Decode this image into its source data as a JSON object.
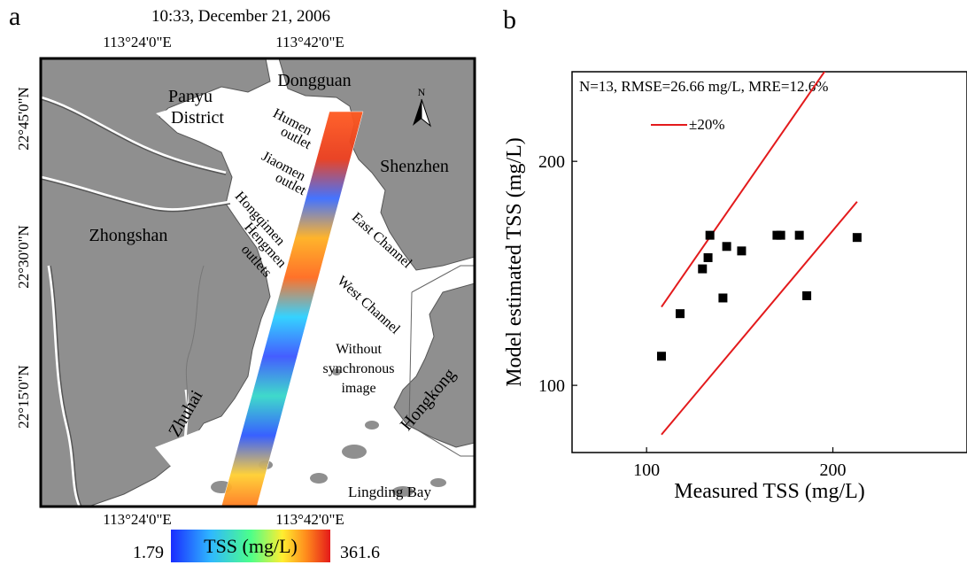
{
  "panel_a": {
    "label": "a",
    "title": "10:33, December 21, 2006",
    "lon_ticks": [
      "113°24'0\"E",
      "113°42'0\"E"
    ],
    "lat_ticks": [
      "22°45'0\"N",
      "22°30'0\"N",
      "22°15'0\"N"
    ],
    "places": {
      "dongguan": "Dongguan",
      "panyu_line1": "Panyu",
      "panyu_line2": "District",
      "shenzhen": "Shenzhen",
      "zhongshan": "Zhongshan",
      "zhuhai": "Zhuhai",
      "hongkong": "Hongkong",
      "lingding": "Lingding Bay"
    },
    "features": {
      "humen_1": "Humen",
      "humen_2": "outlet",
      "jiaomen_1": "Jiaomen",
      "jiaomen_2": "outlet",
      "hongqimen": "Hongqimen",
      "hengmen": "Hengmen",
      "outlets": "outlets",
      "east_channel": "East Channel",
      "west_channel": "West Channel",
      "nosync_1": "Without",
      "nosync_2": "synchronous",
      "nosync_3": "image"
    },
    "north_arrow": "N",
    "colorbar": {
      "min": "1.79",
      "max": "361.6",
      "label": "TSS (mg/L)"
    },
    "colors": {
      "land": "#8f8f8f",
      "water": "#ffffff",
      "border": "#000000"
    }
  },
  "chart_data": {
    "type": "scatter",
    "panel_label": "b",
    "annotation": "N=13, RMSE=26.66 mg/L, MRE=12.6%",
    "legend": [
      {
        "label": "±20%",
        "color": "#e31a1c"
      }
    ],
    "xlabel": "Measured TSS (mg/L)",
    "ylabel": "Model estimated TSS (mg/L)",
    "xlim": [
      60,
      272
    ],
    "ylim": [
      70,
      240
    ],
    "xticks": [
      100,
      200
    ],
    "yticks": [
      100,
      200
    ],
    "points": [
      {
        "x": 108,
        "y": 113
      },
      {
        "x": 118,
        "y": 132
      },
      {
        "x": 130,
        "y": 152
      },
      {
        "x": 133,
        "y": 157
      },
      {
        "x": 134,
        "y": 167
      },
      {
        "x": 141,
        "y": 139
      },
      {
        "x": 143,
        "y": 162
      },
      {
        "x": 151,
        "y": 160
      },
      {
        "x": 170,
        "y": 167
      },
      {
        "x": 172,
        "y": 167
      },
      {
        "x": 182,
        "y": 167
      },
      {
        "x": 186,
        "y": 140
      },
      {
        "x": 213,
        "y": 166
      }
    ],
    "bounds": [
      {
        "x": [
          108,
          213
        ],
        "y": [
          135,
          261
        ]
      },
      {
        "x": [
          108,
          213
        ],
        "y": [
          78,
          182
        ]
      }
    ],
    "marker_color": "#000000",
    "line_color": "#e31a1c"
  }
}
